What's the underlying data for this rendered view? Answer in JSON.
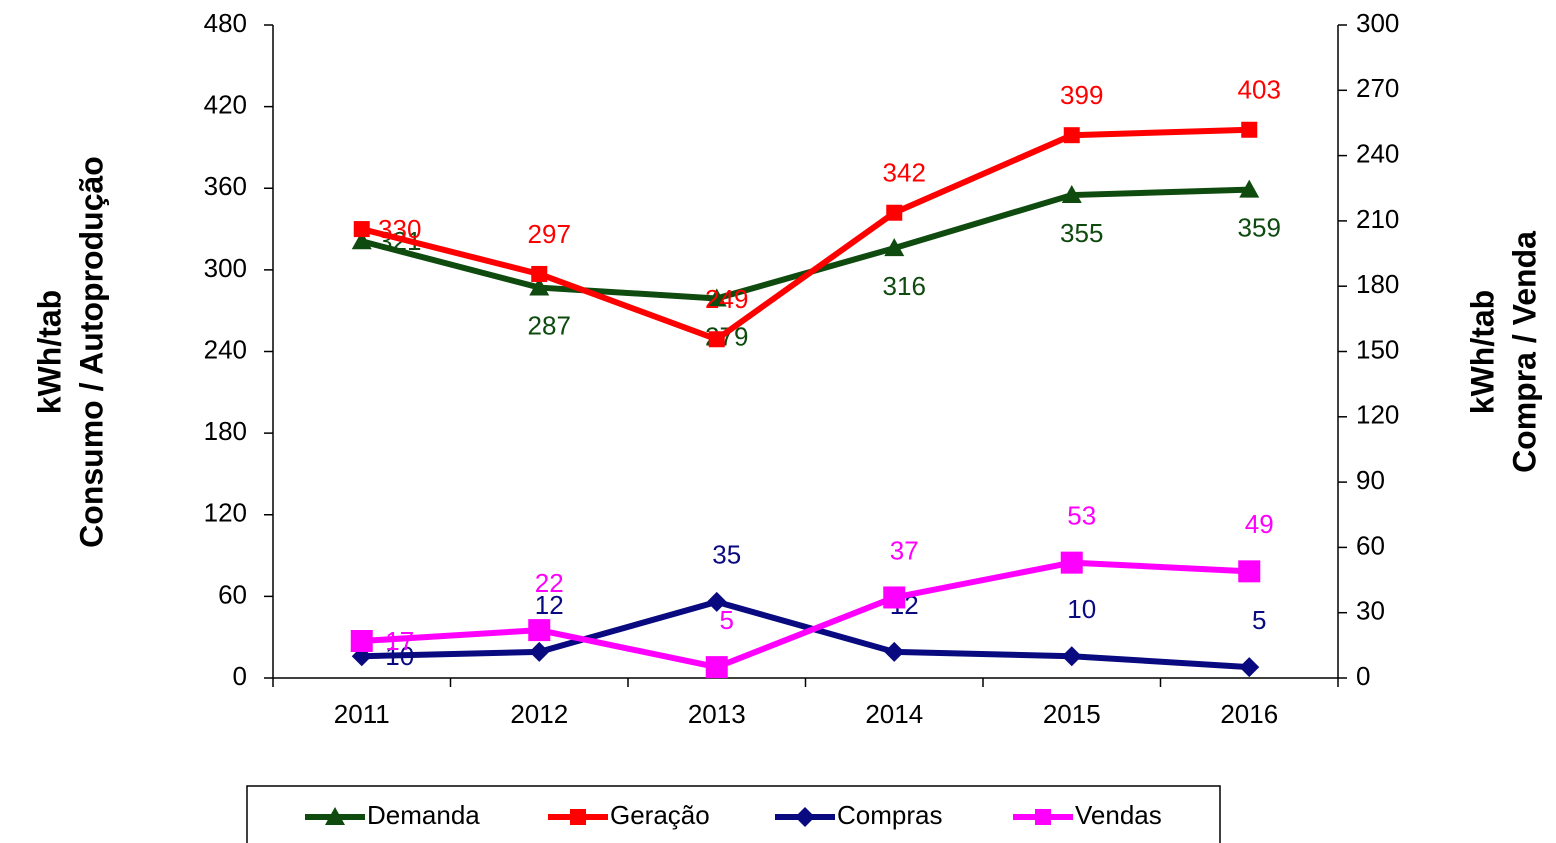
{
  "chart_data": {
    "type": "line",
    "categories": [
      "2011",
      "2012",
      "2013",
      "2014",
      "2015",
      "2016"
    ],
    "series": [
      {
        "name": "Demanda",
        "color": "#0f4a0f",
        "marker": "triangle",
        "axis": "y",
        "values": [
          321,
          287,
          279,
          316,
          355,
          359
        ]
      },
      {
        "name": "Geração",
        "color": "#ff0000",
        "marker": "square",
        "axis": "y",
        "values": [
          330,
          297,
          249,
          342,
          399,
          403
        ]
      },
      {
        "name": "Compras",
        "color": "#0a0a80",
        "marker": "diamond",
        "axis": "y2",
        "values": [
          10,
          12,
          35,
          12,
          10,
          5
        ]
      },
      {
        "name": "Vendas",
        "color": "#ff00ff",
        "marker": "square",
        "axis": "y2",
        "values": [
          17,
          22,
          5,
          37,
          53,
          49
        ]
      }
    ],
    "ylabel": [
      "kWh/tab",
      "Consumo / Autoprodução"
    ],
    "y2label": [
      "kWh/tab",
      "Compra / Venda"
    ],
    "ylim": [
      0,
      480
    ],
    "yticks": [
      0,
      60,
      120,
      180,
      240,
      300,
      360,
      420,
      480
    ],
    "y2lim": [
      0,
      300
    ],
    "y2ticks": [
      0,
      30,
      60,
      90,
      120,
      150,
      180,
      210,
      240,
      270,
      300
    ],
    "grid": false,
    "legend": "bottom",
    "data_labels": true
  }
}
